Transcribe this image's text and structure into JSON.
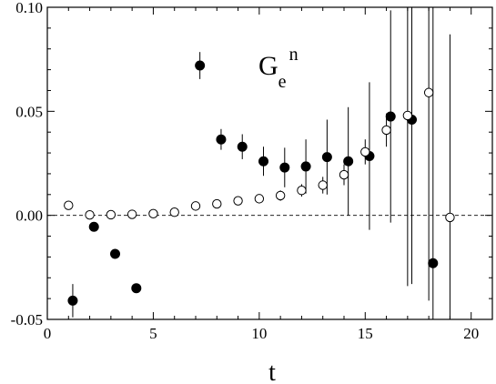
{
  "chart_data": {
    "type": "scatter",
    "title": "",
    "xlabel": "t",
    "ylabel": "",
    "xlim": [
      0,
      21
    ],
    "ylim": [
      -0.05,
      0.1
    ],
    "x_ticks": [
      0,
      5,
      10,
      15,
      20
    ],
    "x_tick_labels": [
      "0",
      "5",
      "10",
      "15",
      "20"
    ],
    "y_ticks": [
      -0.05,
      0.0,
      0.05,
      0.1
    ],
    "y_tick_labels": [
      "-0.05",
      "0.00",
      "0.05",
      "0.10"
    ],
    "grid": false,
    "reference_line": {
      "y": 0.0,
      "style": "dashed"
    },
    "annotation": {
      "main": "G",
      "sub": "e",
      "sup": "n"
    },
    "series": [
      {
        "marker": "filled-circle",
        "points": [
          {
            "x": 1.2,
            "y": -0.041,
            "err": 0.008
          },
          {
            "x": 2.2,
            "y": -0.0055,
            "err": 0.002
          },
          {
            "x": 3.2,
            "y": -0.0185,
            "err": 0.0015
          },
          {
            "x": 4.2,
            "y": -0.035,
            "err": 0.001
          },
          {
            "x": 7.2,
            "y": 0.072,
            "err": 0.0065
          },
          {
            "x": 8.2,
            "y": 0.0365,
            "err": 0.005
          },
          {
            "x": 9.2,
            "y": 0.033,
            "err": 0.006
          },
          {
            "x": 10.2,
            "y": 0.026,
            "err": 0.007
          },
          {
            "x": 11.2,
            "y": 0.023,
            "err": 0.0095
          },
          {
            "x": 12.2,
            "y": 0.0235,
            "err": 0.013
          },
          {
            "x": 13.2,
            "y": 0.028,
            "err": 0.018
          },
          {
            "x": 14.2,
            "y": 0.026,
            "err": 0.026
          },
          {
            "x": 15.2,
            "y": 0.0285,
            "err": 0.0355
          },
          {
            "x": 16.2,
            "y": 0.0475,
            "err": 0.051
          },
          {
            "x": 17.2,
            "y": 0.046,
            "err": 0.079
          },
          {
            "x": 18.2,
            "y": -0.023,
            "err": 0.13
          }
        ]
      },
      {
        "marker": "open-circle",
        "points": [
          {
            "x": 1.0,
            "y": 0.0048,
            "err": 0.0
          },
          {
            "x": 2.0,
            "y": 0.0002,
            "err": 0.0
          },
          {
            "x": 3.0,
            "y": 0.0003,
            "err": 0.0
          },
          {
            "x": 4.0,
            "y": 0.0005,
            "err": 0.0
          },
          {
            "x": 5.0,
            "y": 0.0008,
            "err": 0.0
          },
          {
            "x": 6.0,
            "y": 0.0015,
            "err": 0.0
          },
          {
            "x": 7.0,
            "y": 0.0045,
            "err": 0.0
          },
          {
            "x": 8.0,
            "y": 0.0055,
            "err": 0.0007
          },
          {
            "x": 9.0,
            "y": 0.007,
            "err": 0.001
          },
          {
            "x": 10.0,
            "y": 0.008,
            "err": 0.0015
          },
          {
            "x": 11.0,
            "y": 0.0095,
            "err": 0.0025
          },
          {
            "x": 12.0,
            "y": 0.012,
            "err": 0.003
          },
          {
            "x": 13.0,
            "y": 0.0145,
            "err": 0.004
          },
          {
            "x": 14.0,
            "y": 0.0195,
            "err": 0.005
          },
          {
            "x": 15.0,
            "y": 0.0305,
            "err": 0.006
          },
          {
            "x": 16.0,
            "y": 0.041,
            "err": 0.008
          },
          {
            "x": 17.0,
            "y": 0.048,
            "err": 0.082
          },
          {
            "x": 18.0,
            "y": 0.059,
            "err": 0.1
          },
          {
            "x": 19.0,
            "y": -0.001,
            "err": 0.088
          }
        ]
      }
    ]
  }
}
